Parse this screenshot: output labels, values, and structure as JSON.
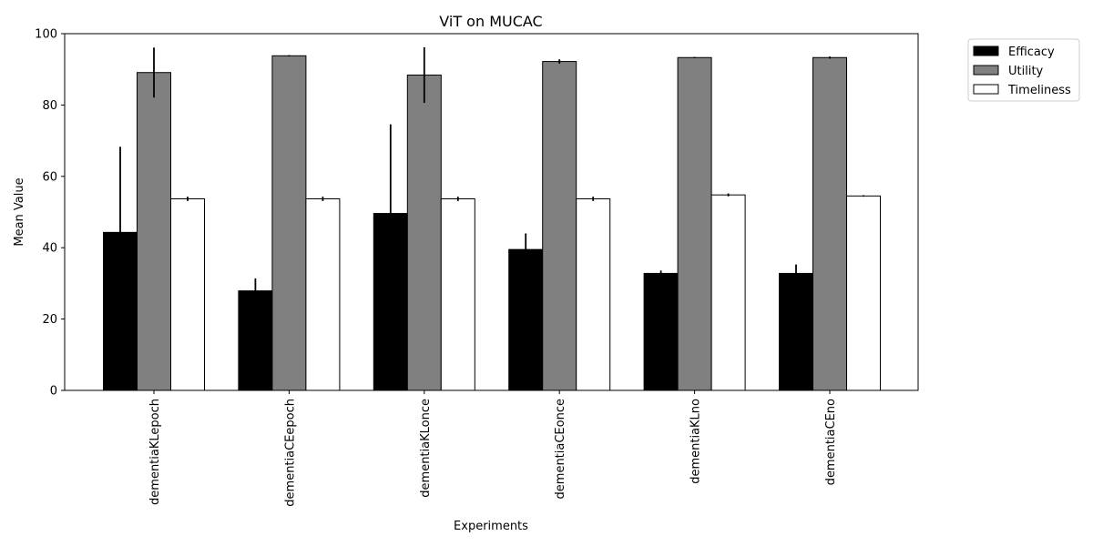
{
  "chart_data": {
    "type": "bar",
    "title": "ViT on MUCAC",
    "xlabel": "Experiments",
    "ylabel": "Mean Value",
    "ylim": [
      0,
      100
    ],
    "yticks": [
      0,
      20,
      40,
      60,
      80,
      100
    ],
    "grid": false,
    "legend_position": "outside-top-right",
    "categories": [
      "dementiaKLepoch",
      "dementiaCEepoch",
      "dementiaKLonce",
      "dementiaCEonce",
      "dementiaKLno",
      "dementiaCEno"
    ],
    "series": [
      {
        "name": "Efficacy",
        "color": "#000000",
        "values": [
          44.3,
          27.9,
          49.6,
          39.5,
          32.8,
          32.8
        ],
        "errors": [
          24.0,
          3.5,
          25.0,
          4.5,
          0.8,
          2.5
        ]
      },
      {
        "name": "Utility",
        "color": "#808080",
        "values": [
          89.1,
          93.8,
          88.4,
          92.2,
          93.3,
          93.3
        ],
        "errors": [
          7.0,
          0.2,
          7.8,
          0.6,
          0.2,
          0.3
        ]
      },
      {
        "name": "Timeliness",
        "color": "#ffffff",
        "values": [
          53.7,
          53.7,
          53.7,
          53.7,
          54.8,
          54.5
        ],
        "errors": [
          0.6,
          0.6,
          0.6,
          0.6,
          0.4,
          0.2
        ]
      }
    ]
  }
}
